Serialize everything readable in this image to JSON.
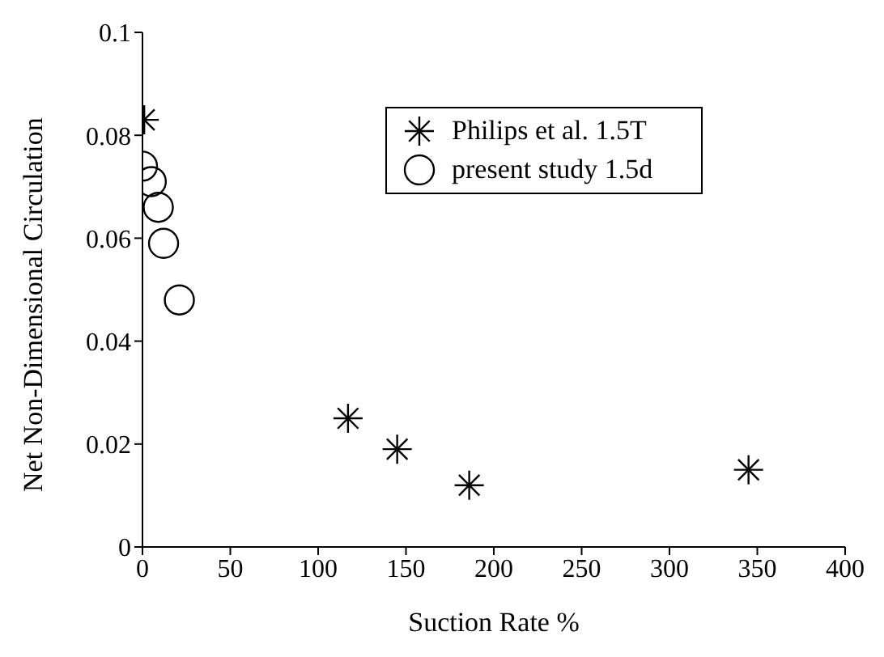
{
  "chart_data": {
    "type": "scatter",
    "xlabel": "Suction Rate %",
    "ylabel": "Net Non-Dimensional Circulation",
    "xlim": [
      0,
      400
    ],
    "xticks": [
      0,
      50,
      100,
      150,
      200,
      250,
      300,
      350,
      400
    ],
    "ylim": [
      0,
      0.1
    ],
    "yticks": [
      0,
      0.02,
      0.04,
      0.06,
      0.08,
      0.1
    ],
    "grid": false,
    "legend": "top right",
    "series": [
      {
        "name": "Philips et al. 1.5T",
        "color": "#000000",
        "marker": "cross",
        "x": [
          1,
          117,
          145,
          186,
          345
        ],
        "values": [
          0.083,
          0.025,
          0.019,
          0.012,
          0.015
        ]
      },
      {
        "name": "present study 1.5d",
        "color": "#000000",
        "marker": "circle",
        "x": [
          0,
          5,
          9,
          12,
          21
        ],
        "values": [
          0.074,
          0.071,
          0.066,
          0.059,
          0.048
        ]
      }
    ]
  }
}
